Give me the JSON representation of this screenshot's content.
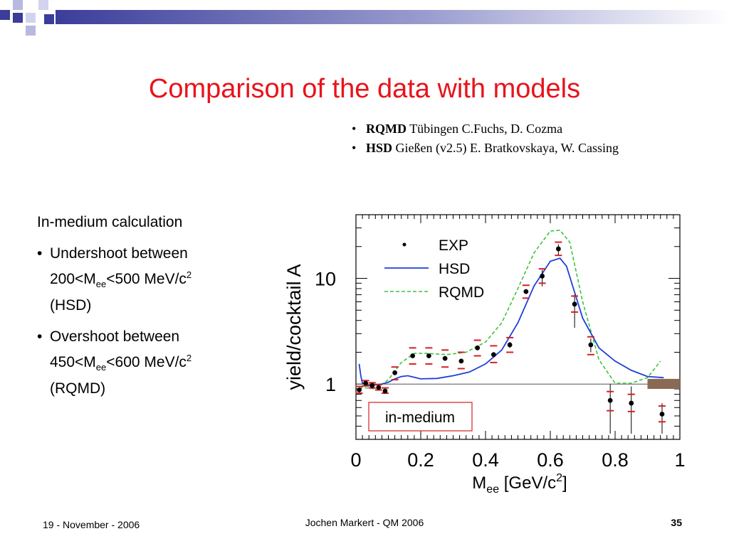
{
  "slide": {
    "title": "Comparison of the data with models",
    "colors": {
      "title": "#e8131b",
      "banner": "#3b3d9a",
      "banner_light": "#b8b9e0"
    }
  },
  "models": [
    {
      "name": "RQMD",
      "text": "Tübingen C.Fuchs, D. Cozma"
    },
    {
      "name": "HSD",
      "text": "Gießen (v2.5) E. Bratkovskaya,  W. Cassing"
    }
  ],
  "notes": {
    "heading": "In-medium calculation",
    "items": [
      {
        "line1": "Undershoot between",
        "pre": "200<M",
        "sub": "ee",
        "mid": "<500 MeV/c",
        "sup": "2",
        "line3": "(HSD)"
      },
      {
        "line1": "Overshoot between",
        "pre": "450<M",
        "sub": "ee",
        "mid": "<600 MeV/c",
        "sup": "2",
        "line3": "(RQMD)"
      }
    ]
  },
  "chart_data": {
    "type": "scatter",
    "ylabel": "yield/cocktail A",
    "xlabel_main": "M",
    "xlabel_sub": "ee",
    "xlabel_unit": " [GeV/c",
    "xlabel_sup": "2",
    "xlabel_end": "]",
    "xlim": [
      0,
      1
    ],
    "ylim": [
      0.3,
      40
    ],
    "yscale": "log",
    "x_ticks": [
      "0",
      "0.2",
      "0.4",
      "0.6",
      "0.8",
      "1"
    ],
    "x_tick_values": [
      0,
      0.2,
      0.4,
      0.6,
      0.8,
      1
    ],
    "y_ticks": [
      "1",
      "10"
    ],
    "y_tick_values": [
      1,
      10
    ],
    "annotation": "in-medium",
    "legend": {
      "position": "top-left",
      "entries": [
        "EXP",
        "HSD",
        "RQMD"
      ]
    },
    "colors": {
      "exp": "#000000",
      "hsd": "#1f3fd8",
      "rqmd": "#3cc43c",
      "syst": "#d42020",
      "band": "#8a6a55"
    },
    "series": [
      {
        "name": "EXP",
        "kind": "points",
        "x": [
          0.01,
          0.03,
          0.05,
          0.07,
          0.09,
          0.12,
          0.175,
          0.225,
          0.275,
          0.325,
          0.375,
          0.425,
          0.475,
          0.525,
          0.575,
          0.625,
          0.675,
          0.725,
          0.785,
          0.85,
          0.945
        ],
        "y": [
          0.88,
          1.02,
          0.97,
          0.93,
          0.86,
          1.28,
          1.85,
          1.85,
          1.75,
          1.65,
          2.2,
          1.9,
          2.35,
          7.5,
          10.5,
          19.0,
          5.7,
          2.35,
          0.7,
          0.66,
          0.52
        ],
        "ylow": [
          0.86,
          0.99,
          0.95,
          0.91,
          0.84,
          1.22,
          1.78,
          1.78,
          1.68,
          1.58,
          2.1,
          1.82,
          2.2,
          7.1,
          8.4,
          16.5,
          3.4,
          2.0,
          0.34,
          0.34,
          0.34
        ],
        "yhigh": [
          0.9,
          1.05,
          0.99,
          0.95,
          0.88,
          1.34,
          1.92,
          1.92,
          1.82,
          1.72,
          2.3,
          1.98,
          2.5,
          7.9,
          12.0,
          21.0,
          7.0,
          2.7,
          1.0,
          0.95,
          0.66
        ],
        "syst_low": [
          0.82,
          0.96,
          0.92,
          0.88,
          0.82,
          1.1,
          1.55,
          1.55,
          1.45,
          1.4,
          1.85,
          1.6,
          2.0,
          6.5,
          9.0,
          16.5,
          4.8,
          1.9,
          0.56,
          0.55,
          0.44
        ],
        "syst_high": [
          0.95,
          1.08,
          1.03,
          0.99,
          0.92,
          1.45,
          2.2,
          2.2,
          2.1,
          2.0,
          2.6,
          2.3,
          2.75,
          8.6,
          12.3,
          22.0,
          6.8,
          2.8,
          0.85,
          0.8,
          0.62
        ]
      },
      {
        "name": "HSD",
        "kind": "line",
        "x": [
          0.01,
          0.015,
          0.02,
          0.04,
          0.06,
          0.08,
          0.1,
          0.12,
          0.14,
          0.16,
          0.2,
          0.25,
          0.3,
          0.35,
          0.4,
          0.45,
          0.5,
          0.55,
          0.6,
          0.63,
          0.65,
          0.7,
          0.75,
          0.8,
          0.85,
          0.9,
          0.95
        ],
        "y": [
          1.55,
          1.2,
          1.02,
          0.97,
          0.98,
          1.0,
          1.04,
          1.12,
          1.18,
          1.2,
          1.12,
          1.13,
          1.2,
          1.3,
          1.55,
          2.1,
          3.8,
          8.5,
          14.5,
          15.5,
          13.0,
          4.2,
          2.2,
          1.65,
          1.35,
          1.18,
          1.15
        ]
      },
      {
        "name": "RQMD",
        "kind": "line",
        "x": [
          0.01,
          0.03,
          0.06,
          0.1,
          0.14,
          0.18,
          0.22,
          0.28,
          0.34,
          0.4,
          0.45,
          0.5,
          0.55,
          0.6,
          0.63,
          0.66,
          0.7,
          0.75,
          0.8,
          0.85,
          0.9,
          0.94
        ],
        "y": [
          0.92,
          0.92,
          0.9,
          1.1,
          1.6,
          1.95,
          1.95,
          1.9,
          2.0,
          2.5,
          3.8,
          8.0,
          17.5,
          28.0,
          28.5,
          22.0,
          6.0,
          1.7,
          1.02,
          1.02,
          1.15,
          1.65
        ]
      }
    ]
  },
  "footer": {
    "date": "19 - November - 2006",
    "author": "Jochen Markert - QM 2006",
    "page": "35"
  }
}
